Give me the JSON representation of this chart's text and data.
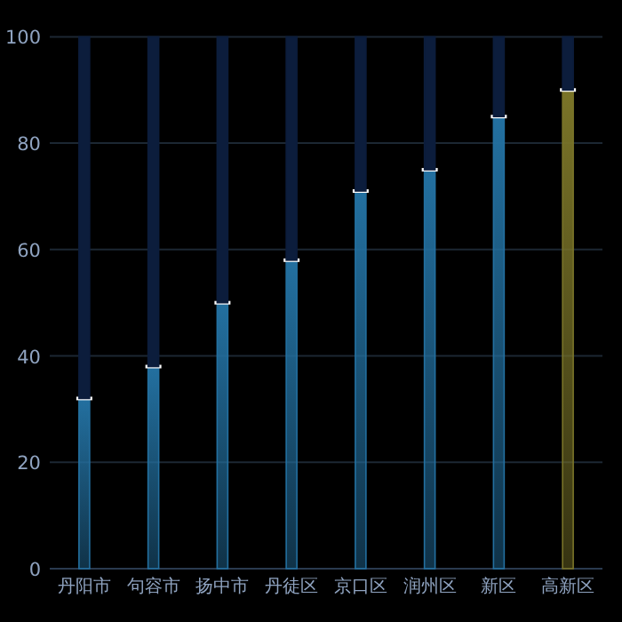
{
  "chart_data": {
    "type": "bar",
    "stacked": true,
    "categories": [
      "丹阳市",
      "句容市",
      "扬中市",
      "丹徒区",
      "京口区",
      "润州区",
      "新区",
      "高新区"
    ],
    "series": [
      {
        "colors": [
          "#2370a0",
          "#2370a0",
          "#2370a0",
          "#2370a0",
          "#2370a0",
          "#2370a0",
          "#2370a0",
          "#7a7428"
        ],
        "values": [
          32,
          38,
          50,
          58,
          71,
          75,
          85,
          90
        ]
      },
      {
        "color": "#0c1d3c",
        "values": [
          68,
          62,
          50,
          42,
          29,
          25,
          15,
          10
        ]
      }
    ],
    "ylim": [
      0,
      100
    ],
    "yticks": [
      0,
      20,
      40,
      60,
      80,
      100
    ],
    "grid": "y"
  }
}
